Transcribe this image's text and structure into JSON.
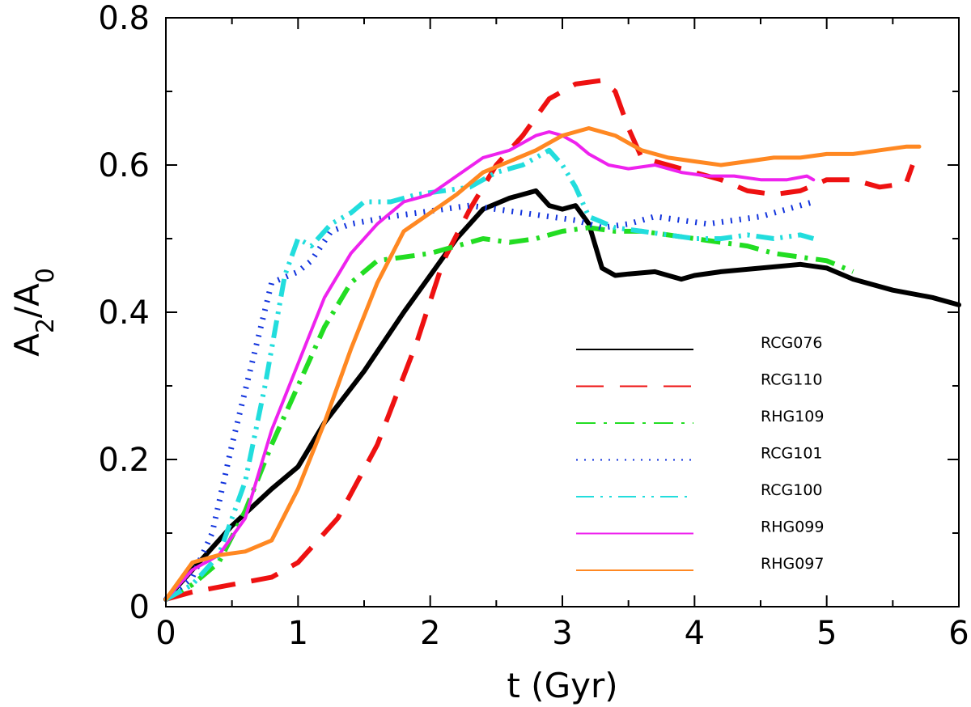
{
  "chart_data": {
    "type": "line",
    "title": "",
    "xlabel": "t (Gyr)",
    "ylabel_main": "A",
    "ylabel_sub1": "2",
    "ylabel_sep": "/A",
    "ylabel_sub2": "0",
    "xlim": [
      0,
      6
    ],
    "ylim": [
      0,
      0.8
    ],
    "xticks": [
      0,
      1,
      2,
      3,
      4,
      5,
      6
    ],
    "xtick_labels": [
      "0",
      "1",
      "2",
      "3",
      "4",
      "5",
      "6"
    ],
    "yticks": [
      0,
      0.2,
      0.4,
      0.6,
      0.8
    ],
    "ytick_labels": [
      "0",
      "0.2",
      "0.4",
      "0.6",
      "0.8"
    ],
    "legend_position": "lower-right",
    "series": [
      {
        "name": "RCG076",
        "color": "#000000",
        "style": "solid",
        "width": 6,
        "x": [
          0,
          0.2,
          0.5,
          0.8,
          1.0,
          1.2,
          1.5,
          1.8,
          2.0,
          2.2,
          2.4,
          2.6,
          2.8,
          2.9,
          3.0,
          3.1,
          3.2,
          3.3,
          3.4,
          3.5,
          3.7,
          3.9,
          4.0,
          4.2,
          4.5,
          4.8,
          5.0,
          5.2,
          5.5,
          5.8,
          6.0
        ],
        "y": [
          0.01,
          0.05,
          0.11,
          0.16,
          0.19,
          0.25,
          0.32,
          0.4,
          0.45,
          0.5,
          0.54,
          0.555,
          0.565,
          0.545,
          0.54,
          0.545,
          0.52,
          0.46,
          0.45,
          0.452,
          0.455,
          0.445,
          0.45,
          0.455,
          0.46,
          0.465,
          0.46,
          0.445,
          0.43,
          0.42,
          0.41
        ]
      },
      {
        "name": "RCG110",
        "color": "#ee1111",
        "style": "dashed",
        "width": 6,
        "x": [
          0,
          0.2,
          0.5,
          0.8,
          1.0,
          1.3,
          1.6,
          1.9,
          2.1,
          2.3,
          2.5,
          2.7,
          2.9,
          3.1,
          3.3,
          3.4,
          3.5,
          3.6,
          3.8,
          4.0,
          4.2,
          4.4,
          4.6,
          4.8,
          5.0,
          5.2,
          5.4,
          5.6,
          5.65
        ],
        "y": [
          0.01,
          0.02,
          0.03,
          0.04,
          0.06,
          0.12,
          0.22,
          0.36,
          0.47,
          0.54,
          0.6,
          0.64,
          0.69,
          0.71,
          0.715,
          0.7,
          0.65,
          0.61,
          0.6,
          0.59,
          0.58,
          0.565,
          0.56,
          0.565,
          0.58,
          0.58,
          0.57,
          0.575,
          0.6
        ]
      },
      {
        "name": "RHG109",
        "color": "#22dd22",
        "style": "dashdot",
        "width": 6,
        "x": [
          0,
          0.2,
          0.4,
          0.6,
          0.8,
          1.0,
          1.2,
          1.4,
          1.6,
          1.8,
          2.0,
          2.2,
          2.4,
          2.6,
          2.8,
          3.0,
          3.2,
          3.4,
          3.6,
          3.8,
          4.0,
          4.2,
          4.4,
          4.6,
          4.8,
          5.0,
          5.2
        ],
        "y": [
          0.01,
          0.03,
          0.06,
          0.13,
          0.22,
          0.3,
          0.38,
          0.44,
          0.47,
          0.475,
          0.48,
          0.49,
          0.5,
          0.495,
          0.5,
          0.51,
          0.515,
          0.51,
          0.51,
          0.505,
          0.5,
          0.495,
          0.49,
          0.48,
          0.475,
          0.47,
          0.455
        ]
      },
      {
        "name": "RCG101",
        "color": "#1133dd",
        "style": "dotted",
        "width": 7,
        "x": [
          0,
          0.2,
          0.35,
          0.5,
          0.65,
          0.8,
          1.0,
          1.1,
          1.25,
          1.4,
          1.55,
          1.7,
          1.9,
          2.1,
          2.3,
          2.5,
          2.7,
          2.9,
          3.1,
          3.3,
          3.5,
          3.7,
          3.9,
          4.1,
          4.3,
          4.5,
          4.7,
          4.9
        ],
        "y": [
          0.01,
          0.04,
          0.1,
          0.22,
          0.33,
          0.44,
          0.455,
          0.47,
          0.51,
          0.52,
          0.525,
          0.53,
          0.535,
          0.54,
          0.545,
          0.54,
          0.535,
          0.53,
          0.525,
          0.515,
          0.52,
          0.53,
          0.525,
          0.52,
          0.525,
          0.53,
          0.54,
          0.55
        ]
      },
      {
        "name": "RCG100",
        "color": "#22dddd",
        "style": "dashdotdot",
        "width": 6,
        "x": [
          0,
          0.2,
          0.4,
          0.6,
          0.75,
          0.9,
          1.0,
          1.1,
          1.25,
          1.4,
          1.5,
          1.7,
          1.9,
          2.1,
          2.3,
          2.5,
          2.7,
          2.9,
          3.0,
          3.1,
          3.2,
          3.4,
          3.6,
          3.8,
          4.0,
          4.2,
          4.4,
          4.6,
          4.8,
          4.9
        ],
        "y": [
          0.01,
          0.03,
          0.07,
          0.17,
          0.3,
          0.45,
          0.5,
          0.49,
          0.52,
          0.535,
          0.55,
          0.55,
          0.56,
          0.565,
          0.57,
          0.59,
          0.6,
          0.62,
          0.6,
          0.57,
          0.53,
          0.515,
          0.51,
          0.505,
          0.5,
          0.5,
          0.505,
          0.5,
          0.505,
          0.5
        ]
      },
      {
        "name": "RHG099",
        "color": "#ee22ee",
        "style": "solid",
        "width": 4,
        "x": [
          0,
          0.2,
          0.4,
          0.6,
          0.8,
          1.0,
          1.2,
          1.4,
          1.6,
          1.8,
          2.0,
          2.2,
          2.4,
          2.6,
          2.8,
          2.9,
          3.0,
          3.1,
          3.2,
          3.35,
          3.5,
          3.7,
          3.9,
          4.1,
          4.3,
          4.5,
          4.7,
          4.85,
          4.9
        ],
        "y": [
          0.01,
          0.05,
          0.07,
          0.12,
          0.24,
          0.33,
          0.42,
          0.48,
          0.52,
          0.55,
          0.56,
          0.585,
          0.61,
          0.62,
          0.64,
          0.645,
          0.64,
          0.63,
          0.615,
          0.6,
          0.595,
          0.6,
          0.59,
          0.585,
          0.585,
          0.58,
          0.58,
          0.585,
          0.58
        ]
      },
      {
        "name": "RHG097",
        "color": "#ff8822",
        "style": "solid",
        "width": 5,
        "x": [
          0,
          0.2,
          0.4,
          0.6,
          0.8,
          1.0,
          1.2,
          1.4,
          1.6,
          1.8,
          2.0,
          2.2,
          2.4,
          2.6,
          2.8,
          3.0,
          3.2,
          3.4,
          3.6,
          3.8,
          4.0,
          4.2,
          4.4,
          4.6,
          4.8,
          5.0,
          5.2,
          5.4,
          5.6,
          5.7
        ],
        "y": [
          0.01,
          0.06,
          0.07,
          0.075,
          0.09,
          0.16,
          0.25,
          0.35,
          0.44,
          0.51,
          0.535,
          0.56,
          0.59,
          0.605,
          0.62,
          0.64,
          0.65,
          0.64,
          0.62,
          0.61,
          0.605,
          0.6,
          0.605,
          0.61,
          0.61,
          0.615,
          0.615,
          0.62,
          0.625,
          0.625
        ]
      }
    ]
  }
}
